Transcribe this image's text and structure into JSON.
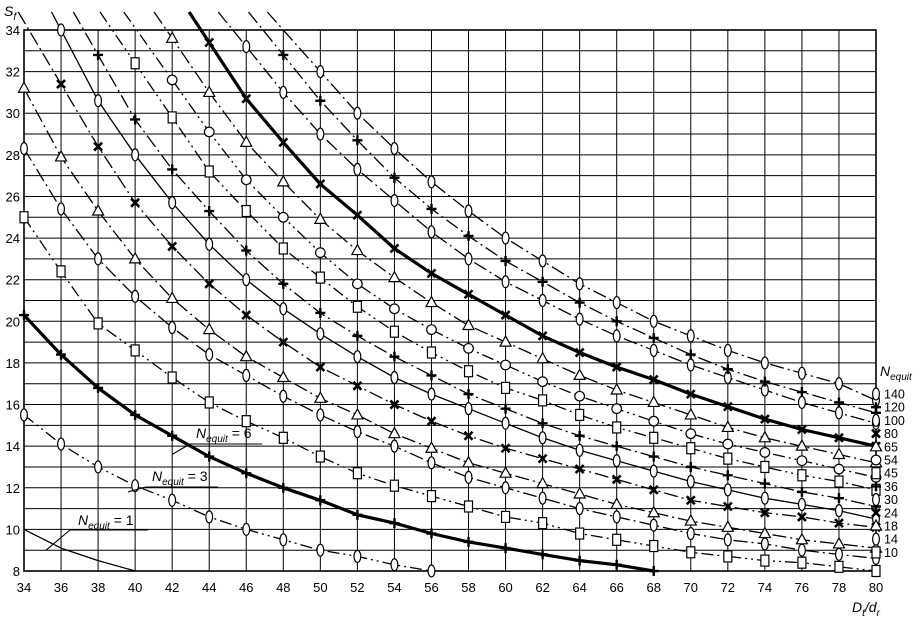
{
  "chart_data": {
    "type": "line",
    "ylabel": "S",
    "ylabel_sub": "f",
    "xlabel_parts": [
      "D",
      "t",
      "/d",
      "r"
    ],
    "legend_title": "N",
    "legend_title_sub": "equit",
    "xlim": [
      34,
      80
    ],
    "ylim": [
      8,
      34
    ],
    "xticks": [
      34,
      36,
      38,
      40,
      42,
      44,
      46,
      48,
      50,
      52,
      54,
      56,
      58,
      60,
      62,
      64,
      66,
      68,
      70,
      72,
      74,
      76,
      78,
      80
    ],
    "yticks": [
      8,
      10,
      12,
      14,
      16,
      18,
      20,
      22,
      24,
      26,
      28,
      30,
      32,
      34
    ],
    "grid": true,
    "legend_placement": "right",
    "curve_labels": [
      {
        "prefix": "N",
        "sub": "equit",
        "suffix": " = 1",
        "target": "1"
      },
      {
        "prefix": "N",
        "sub": "equit",
        "suffix": " = 3",
        "target": "3"
      },
      {
        "prefix": "N",
        "sub": "equit",
        "suffix": " = 6",
        "target": "6"
      }
    ],
    "series": [
      {
        "name": "1",
        "dash": "solid",
        "marker": "none",
        "bold": false,
        "x": [
          34,
          36,
          38,
          40
        ],
        "y": [
          10.0,
          9.1,
          8.5,
          8.0
        ]
      },
      {
        "name": "3",
        "dash": "dashdotdot",
        "marker": "diamond",
        "bold": false,
        "x": [
          34,
          36,
          38,
          40,
          42,
          44,
          46,
          48,
          50,
          52,
          54,
          56
        ],
        "y": [
          15.5,
          14.1,
          13.0,
          12.1,
          11.4,
          10.6,
          10.0,
          9.5,
          9.0,
          8.7,
          8.3,
          8.0
        ]
      },
      {
        "name": "6",
        "dash": "solid",
        "marker": "plus",
        "bold": true,
        "x": [
          34,
          36,
          38,
          40,
          42,
          44,
          46,
          48,
          50,
          52,
          54,
          56,
          58,
          60,
          62,
          64,
          66,
          68
        ],
        "y": [
          20.3,
          18.4,
          16.8,
          15.5,
          14.5,
          13.5,
          12.7,
          12.0,
          11.4,
          10.7,
          10.3,
          9.8,
          9.4,
          9.1,
          8.8,
          8.5,
          8.3,
          8.0
        ]
      },
      {
        "name": "10",
        "dash": "dashdotdot",
        "marker": "square",
        "bold": false,
        "x": [
          34,
          36,
          38,
          40,
          42,
          44,
          46,
          48,
          50,
          52,
          54,
          56,
          58,
          60,
          62,
          64,
          66,
          68,
          70,
          72,
          74,
          76,
          78,
          80
        ],
        "y": [
          25.0,
          22.4,
          19.9,
          18.6,
          17.3,
          16.1,
          15.2,
          14.4,
          13.5,
          12.7,
          12.1,
          11.6,
          11.1,
          10.6,
          10.3,
          9.8,
          9.5,
          9.2,
          8.9,
          8.7,
          8.5,
          8.4,
          8.2,
          8.0
        ]
      },
      {
        "name": "14",
        "dash": "dashdot",
        "marker": "diamond",
        "bold": false,
        "x": [
          34,
          36,
          38,
          40,
          42,
          44,
          46,
          48,
          50,
          52,
          54,
          56,
          58,
          60,
          62,
          64,
          66,
          68,
          70,
          72,
          74,
          76,
          78,
          80
        ],
        "y": [
          28.3,
          25.4,
          23.0,
          21.2,
          19.7,
          18.4,
          17.4,
          16.4,
          15.5,
          14.7,
          14.0,
          13.2,
          12.5,
          12.0,
          11.5,
          11.0,
          10.6,
          10.2,
          9.8,
          9.5,
          9.3,
          9.0,
          8.8,
          8.6
        ]
      },
      {
        "name": "18",
        "dash": "dashdot",
        "marker": "triangle",
        "bold": false,
        "x": [
          34,
          36,
          38,
          40,
          42,
          44,
          46,
          48,
          50,
          52,
          54,
          56,
          58,
          60,
          62,
          64,
          66,
          68,
          70,
          72,
          74,
          76,
          78,
          80
        ],
        "y": [
          31.2,
          27.9,
          25.3,
          23.0,
          21.1,
          19.6,
          18.3,
          17.3,
          16.3,
          15.5,
          14.6,
          13.9,
          13.2,
          12.7,
          12.2,
          11.7,
          11.2,
          10.8,
          10.4,
          10.1,
          9.8,
          9.5,
          9.3,
          9.1
        ]
      },
      {
        "name": "24",
        "dash": "dashdot",
        "marker": "xcross",
        "bold": false,
        "x": [
          36,
          38,
          40,
          42,
          44,
          46,
          48,
          50,
          52,
          54,
          56,
          58,
          60,
          62,
          64,
          66,
          68,
          70,
          72,
          74,
          76,
          78,
          80
        ],
        "y": [
          31.4,
          28.4,
          25.7,
          23.6,
          21.8,
          20.3,
          19.0,
          17.8,
          16.9,
          16.0,
          15.2,
          14.5,
          13.9,
          13.4,
          12.9,
          12.4,
          11.9,
          11.4,
          11.1,
          10.8,
          10.6,
          10.3,
          10.1
        ]
      },
      {
        "name": "30",
        "dash": "solid",
        "marker": "diamond",
        "bold": false,
        "x": [
          36,
          38,
          40,
          42,
          44,
          46,
          48,
          50,
          52,
          54,
          56,
          58,
          60,
          62,
          64,
          66,
          68,
          70,
          72,
          74,
          76,
          78,
          80
        ],
        "y": [
          34.0,
          30.6,
          28.0,
          25.7,
          23.7,
          22.0,
          20.6,
          19.4,
          18.3,
          17.3,
          16.5,
          15.8,
          15.1,
          14.4,
          13.8,
          13.3,
          12.8,
          12.3,
          11.9,
          11.5,
          11.2,
          10.9,
          10.5
        ]
      },
      {
        "name": "36",
        "dash": "dashdot",
        "marker": "plus",
        "bold": false,
        "x": [
          38,
          40,
          42,
          44,
          46,
          48,
          50,
          52,
          54,
          56,
          58,
          60,
          62,
          64,
          66,
          68,
          70,
          72,
          74,
          76,
          78,
          80
        ],
        "y": [
          32.8,
          29.7,
          27.3,
          25.3,
          23.4,
          21.8,
          20.4,
          19.3,
          18.3,
          17.4,
          16.5,
          15.8,
          15.1,
          14.5,
          14.0,
          13.5,
          13.0,
          12.6,
          12.2,
          11.8,
          11.5,
          11.1
        ]
      },
      {
        "name": "45",
        "dash": "dashdotdot",
        "marker": "square",
        "bold": false,
        "x": [
          40,
          42,
          44,
          46,
          48,
          50,
          52,
          54,
          56,
          58,
          60,
          62,
          64,
          66,
          68,
          70,
          72,
          74,
          76,
          78,
          80
        ],
        "y": [
          32.4,
          29.8,
          27.2,
          25.3,
          23.5,
          22.1,
          20.7,
          19.5,
          18.5,
          17.6,
          16.8,
          16.2,
          15.5,
          14.9,
          14.4,
          13.9,
          13.4,
          13.0,
          12.6,
          12.3,
          11.9
        ]
      },
      {
        "name": "54",
        "dash": "dashdotdot",
        "marker": "circle",
        "bold": false,
        "x": [
          42,
          44,
          46,
          48,
          50,
          52,
          54,
          56,
          58,
          60,
          62,
          64,
          66,
          68,
          70,
          72,
          74,
          76,
          78,
          80
        ],
        "y": [
          31.6,
          29.1,
          26.8,
          25.0,
          23.3,
          21.8,
          20.6,
          19.6,
          18.7,
          17.9,
          17.1,
          16.4,
          15.8,
          15.2,
          14.6,
          14.1,
          13.7,
          13.3,
          12.9,
          12.5
        ]
      },
      {
        "name": "65",
        "dash": "dashdot",
        "marker": "triangle",
        "bold": false,
        "x": [
          42,
          44,
          46,
          48,
          50,
          52,
          54,
          56,
          58,
          60,
          62,
          64,
          66,
          68,
          70,
          72,
          74,
          76,
          78,
          80
        ],
        "y": [
          33.6,
          31.0,
          28.6,
          26.7,
          24.9,
          23.4,
          22.1,
          20.9,
          19.8,
          19.0,
          18.2,
          17.4,
          16.7,
          16.1,
          15.5,
          14.9,
          14.4,
          14.0,
          13.6,
          13.2
        ]
      },
      {
        "name": "80",
        "dash": "solid",
        "marker": "xcross",
        "bold": true,
        "x": [
          44,
          46,
          48,
          50,
          52,
          54,
          56,
          58,
          60,
          62,
          64,
          66,
          68,
          70,
          72,
          74,
          76,
          78,
          80
        ],
        "y": [
          33.4,
          30.7,
          28.6,
          26.6,
          25.1,
          23.5,
          22.3,
          21.3,
          20.3,
          19.3,
          18.5,
          17.8,
          17.2,
          16.5,
          15.9,
          15.3,
          14.8,
          14.4,
          14.0
        ]
      },
      {
        "name": "100",
        "dash": "dashdot",
        "marker": "diamond",
        "bold": false,
        "x": [
          46,
          48,
          50,
          52,
          54,
          56,
          58,
          60,
          62,
          64,
          66,
          68,
          70,
          72,
          74,
          76,
          78,
          80
        ],
        "y": [
          33.2,
          31.0,
          29.0,
          27.3,
          25.8,
          24.3,
          23.0,
          21.9,
          21.0,
          20.1,
          19.3,
          18.6,
          17.9,
          17.3,
          16.7,
          16.1,
          15.6,
          15.1
        ]
      },
      {
        "name": "120",
        "dash": "dashdot",
        "marker": "plus",
        "bold": false,
        "x": [
          48,
          50,
          52,
          54,
          56,
          58,
          60,
          62,
          64,
          66,
          68,
          70,
          72,
          74,
          76,
          78,
          80
        ],
        "y": [
          32.8,
          30.6,
          28.7,
          26.9,
          25.4,
          24.1,
          22.9,
          21.9,
          20.9,
          20.0,
          19.2,
          18.4,
          17.7,
          17.1,
          16.6,
          16.1,
          15.6
        ]
      },
      {
        "name": "140",
        "dash": "dashdot",
        "marker": "diamond",
        "bold": false,
        "x": [
          50,
          52,
          54,
          56,
          58,
          60,
          62,
          64,
          66,
          68,
          70,
          72,
          74,
          76,
          78,
          80
        ],
        "y": [
          32.0,
          30.0,
          28.3,
          26.7,
          25.3,
          24.0,
          22.9,
          21.8,
          20.9,
          20.0,
          19.3,
          18.6,
          18.0,
          17.5,
          17.0,
          16.2
        ]
      }
    ]
  }
}
